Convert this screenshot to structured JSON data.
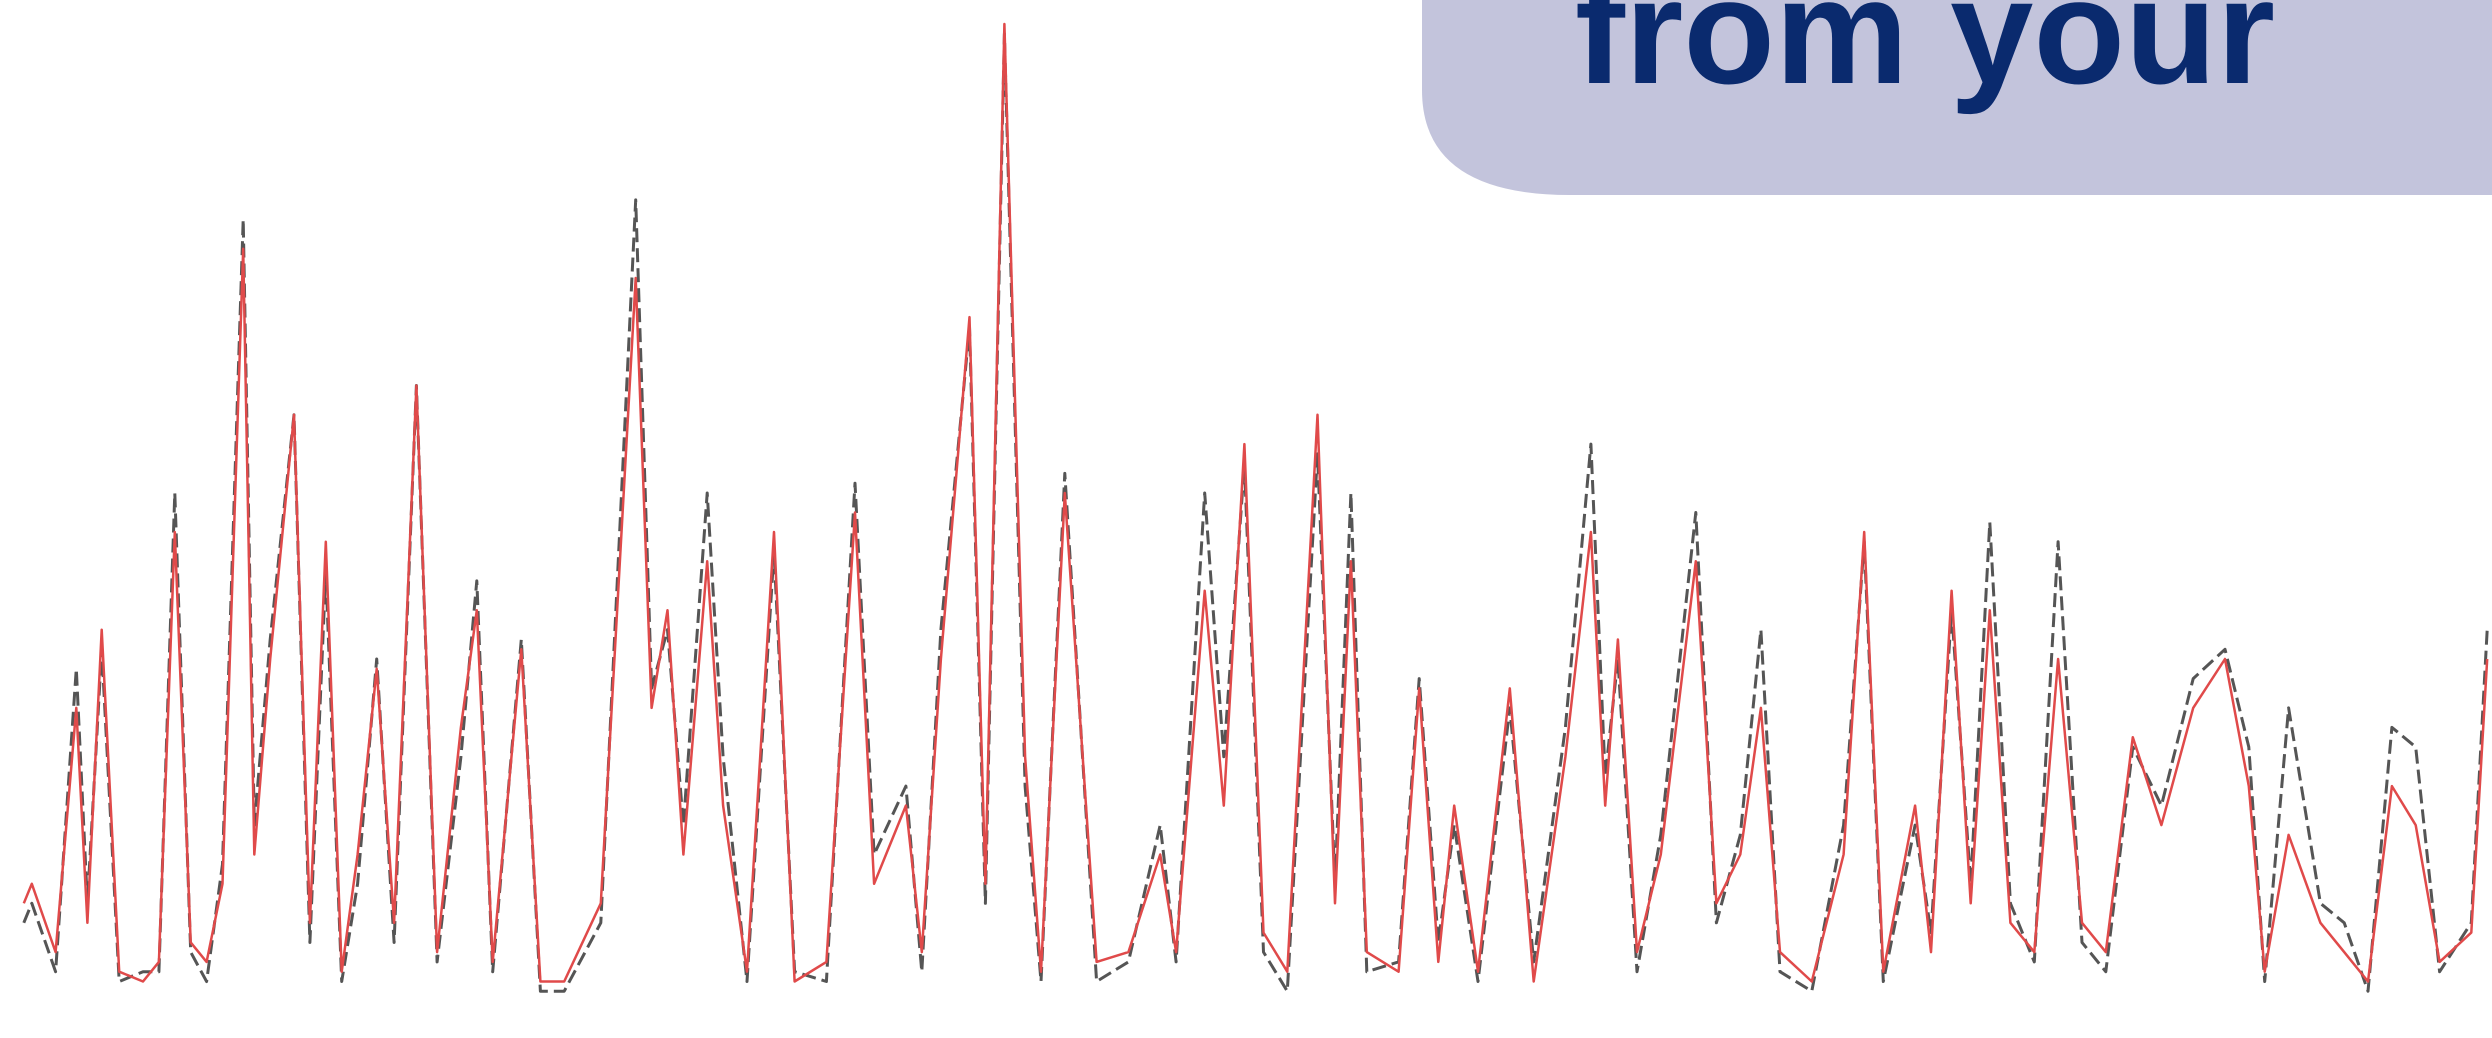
{
  "banner": {
    "text": "from your"
  },
  "chart_data": {
    "type": "line",
    "xlim": [
      0,
      1568
    ],
    "ylim": [
      0,
      100
    ],
    "x": [
      15,
      20,
      35,
      48,
      55,
      64,
      75,
      90,
      100,
      110,
      120,
      130,
      140,
      153,
      160,
      170,
      185,
      195,
      205,
      215,
      225,
      237,
      248,
      262,
      275,
      290,
      300,
      310,
      328,
      340,
      355,
      378,
      400,
      410,
      420,
      430,
      445,
      455,
      470,
      487,
      500,
      520,
      538,
      550,
      570,
      580,
      592,
      610,
      620,
      632,
      645,
      655,
      670,
      690,
      710,
      730,
      740,
      758,
      770,
      783,
      795,
      810,
      829,
      840,
      850,
      860,
      880,
      893,
      905,
      915,
      930,
      950,
      965,
      985,
      1001,
      1010,
      1018,
      1030,
      1045,
      1067,
      1080,
      1095,
      1108,
      1120,
      1140,
      1160,
      1173,
      1185,
      1205,
      1215,
      1228,
      1240,
      1252,
      1265,
      1280,
      1295,
      1310,
      1325,
      1342,
      1360,
      1380,
      1400,
      1415,
      1425,
      1440,
      1460,
      1475,
      1490,
      1505,
      1520,
      1535,
      1555,
      1565
    ],
    "series": [
      {
        "color": "#555555",
        "dashed": true,
        "values": [
          8,
          10,
          3,
          34,
          10,
          36,
          2,
          3,
          3,
          52,
          5,
          2,
          14,
          80,
          18,
          37,
          60,
          6,
          44,
          2,
          12,
          35,
          6,
          63,
          4,
          25,
          43,
          3,
          37,
          1,
          1,
          8,
          82,
          32,
          38,
          18,
          52,
          25,
          2,
          46,
          3,
          2,
          53,
          15,
          22,
          3,
          38,
          69,
          10,
          99,
          22,
          2,
          54,
          2,
          4,
          18,
          4,
          52,
          25,
          55,
          5,
          1,
          56,
          12,
          52,
          3,
          4,
          33,
          6,
          18,
          2,
          30,
          4,
          28,
          57,
          23,
          35,
          3,
          17,
          50,
          8,
          17,
          38,
          3,
          1,
          18,
          47,
          2,
          18,
          7,
          40,
          12,
          49,
          10,
          4,
          47,
          6,
          3,
          26,
          20,
          33,
          36,
          26,
          2,
          30,
          10,
          8,
          1,
          28,
          26,
          3,
          8,
          38
        ]
      },
      {
        "color": "#e04a4a",
        "dashed": false,
        "values": [
          10,
          12,
          5,
          30,
          8,
          38,
          3,
          2,
          4,
          48,
          6,
          4,
          12,
          77,
          15,
          35,
          60,
          8,
          47,
          3,
          15,
          34,
          8,
          63,
          5,
          28,
          40,
          4,
          36,
          2,
          2,
          10,
          74,
          30,
          40,
          15,
          45,
          20,
          3,
          48,
          2,
          4,
          50,
          12,
          20,
          5,
          35,
          70,
          12,
          100,
          25,
          3,
          52,
          4,
          5,
          15,
          5,
          42,
          20,
          57,
          7,
          3,
          60,
          10,
          45,
          5,
          3,
          32,
          4,
          20,
          3,
          32,
          2,
          25,
          48,
          20,
          37,
          5,
          15,
          45,
          10,
          15,
          30,
          5,
          2,
          15,
          48,
          3,
          20,
          5,
          42,
          10,
          40,
          8,
          5,
          35,
          8,
          5,
          27,
          18,
          30,
          35,
          22,
          3,
          17,
          8,
          5,
          2,
          22,
          18,
          4,
          7,
          35
        ]
      }
    ]
  }
}
